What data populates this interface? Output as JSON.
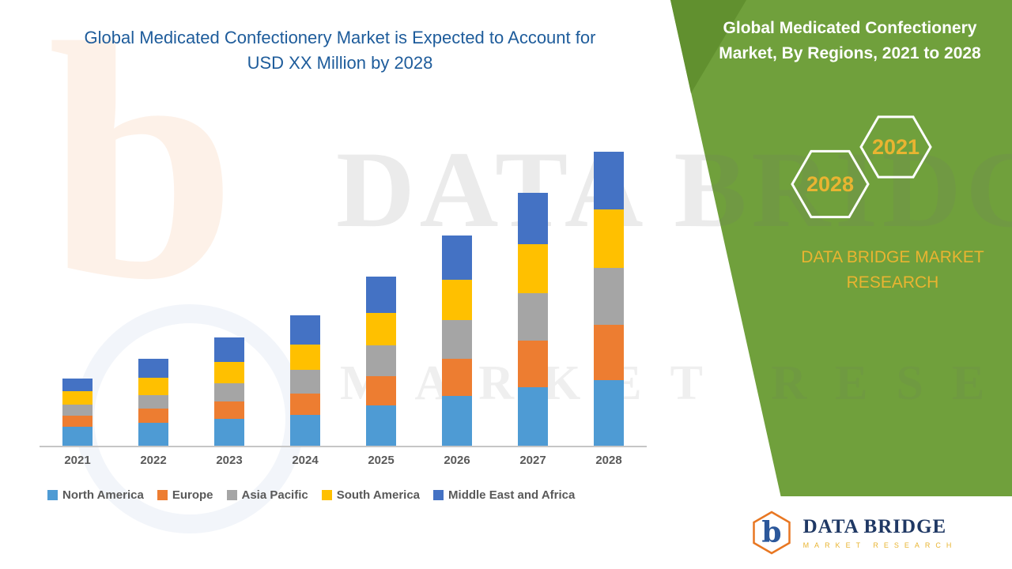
{
  "theme": {
    "green": "#70A03C",
    "green_dark": "#61902F",
    "yellow": "#E9B431",
    "title_blue": "#1E5C9B",
    "text_gray": "#595959",
    "navy": "#1F3864",
    "orange": "#E87722"
  },
  "left": {
    "title": "Global Medicated Confectionery Market is Expected to Account for USD XX Million by 2028"
  },
  "right_panel": {
    "title": "Global Medicated Confectionery Market, By Regions, 2021 to 2028",
    "hexagon_back": "2021",
    "hexagon_front": "2028",
    "brand": "DATA BRIDGE MARKET RESEARCH"
  },
  "watermark": {
    "monogram": "b",
    "line1": "DATA BRIDGE",
    "line2": "MARKET RESEARCH"
  },
  "footer_logo": {
    "monogram": "b",
    "title": "DATA BRIDGE",
    "subtitle": "MARKET RESEARCH"
  },
  "chart_data": {
    "type": "bar",
    "stacked": true,
    "title": "Global Medicated Confectionery Market is Expected to Account for USD XX Million by 2028",
    "categories": [
      "2021",
      "2022",
      "2023",
      "2024",
      "2025",
      "2026",
      "2027",
      "2028"
    ],
    "series": [
      {
        "name": "North America",
        "color": "#4E9BD4",
        "values": [
          25,
          30,
          35,
          40,
          52,
          65,
          76,
          85
        ]
      },
      {
        "name": "Europe",
        "color": "#ED7D31",
        "values": [
          14,
          18,
          22,
          28,
          38,
          48,
          60,
          72
        ]
      },
      {
        "name": "Asia Pacific",
        "color": "#A5A5A5",
        "values": [
          14,
          18,
          24,
          30,
          40,
          50,
          62,
          74
        ]
      },
      {
        "name": "South America",
        "color": "#FFC000",
        "values": [
          18,
          22,
          28,
          33,
          42,
          52,
          64,
          76
        ]
      },
      {
        "name": "Middle East and Africa",
        "color": "#4472C4",
        "values": [
          16,
          25,
          32,
          38,
          48,
          58,
          66,
          75
        ]
      }
    ],
    "ylim": [
      0,
      400
    ],
    "y_axis_visible": false,
    "data_labels_visible": false,
    "grid": false,
    "legend_position": "bottom",
    "xlabel": "",
    "ylabel": ""
  }
}
